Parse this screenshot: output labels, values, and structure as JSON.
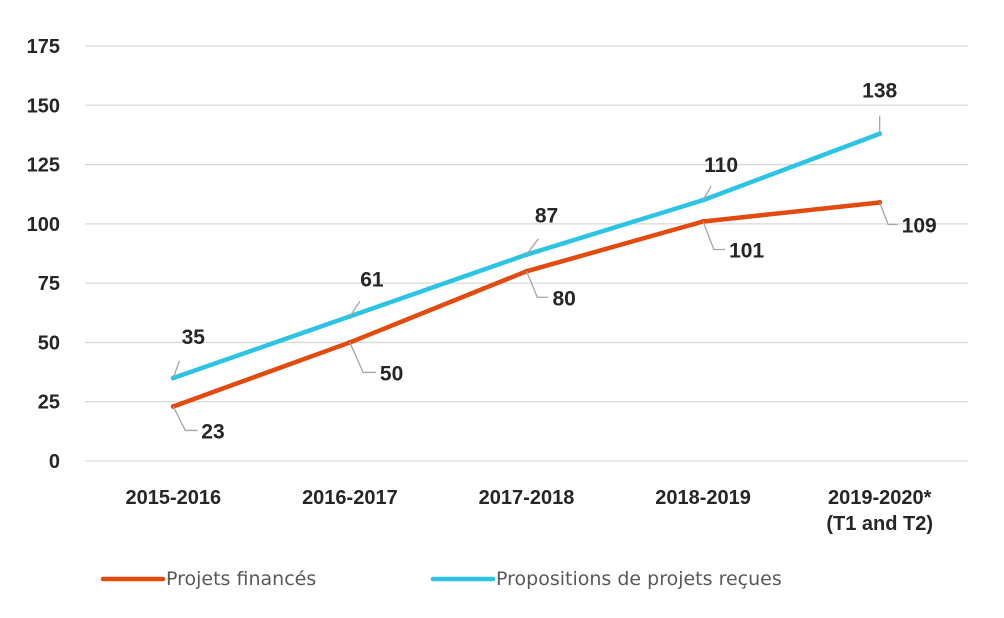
{
  "chart_data": {
    "type": "line",
    "title": "",
    "xlabel": "",
    "ylabel": "",
    "categories": [
      "2015-2016",
      "2016-2017",
      "2017-2018",
      "2018-2019",
      "2019-2020*\n(T1 and T2)"
    ],
    "ylim": [
      0,
      175
    ],
    "yticks": [
      0,
      25,
      50,
      75,
      100,
      125,
      150,
      175
    ],
    "grid": true,
    "legend_position": "bottom",
    "series": [
      {
        "name": "Projets financés",
        "color": "#E34A0E",
        "values": [
          23,
          50,
          80,
          101,
          109
        ]
      },
      {
        "name": "Propositions de projets reçues",
        "color": "#2BC4E2",
        "values": [
          35,
          61,
          87,
          110,
          138
        ]
      }
    ]
  }
}
